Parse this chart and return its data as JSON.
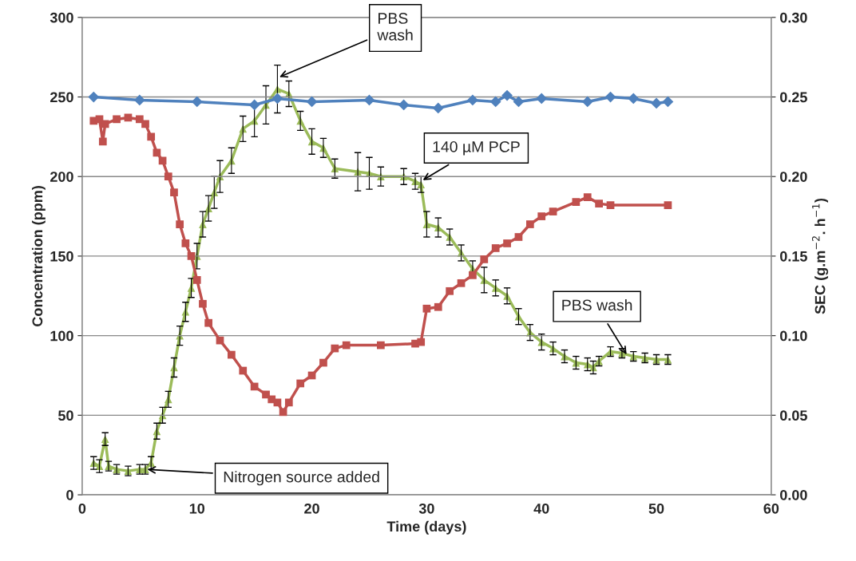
{
  "chart_data": {
    "type": "line",
    "xlabel": "Time (days)",
    "ylabel": "Concentration (ppm)",
    "y2label": "SEC (g.m$^{−2}$. h$^{−1}$)",
    "xlim": [
      0,
      60
    ],
    "xticks": [
      0,
      10,
      20,
      30,
      40,
      50,
      60
    ],
    "ylim": [
      0,
      300
    ],
    "yticks": [
      0,
      50,
      100,
      150,
      200,
      250,
      300
    ],
    "y2lim": [
      0,
      0.3
    ],
    "y2ticks": [
      {
        "value": 0,
        "label": "0.00"
      },
      {
        "value": 0.05,
        "label": "0.05"
      },
      {
        "value": 0.1,
        "label": "0.10"
      },
      {
        "value": 0.15,
        "label": "0.15"
      },
      {
        "value": 0.2,
        "label": "0.20"
      },
      {
        "value": 0.25,
        "label": "0.25"
      },
      {
        "value": 0.3,
        "label": "0.30"
      }
    ],
    "grid": "y",
    "legend": false,
    "line_style": "solid",
    "series": [
      {
        "color": "#4f81bd",
        "marker": "diamond",
        "x": [
          1,
          5,
          10,
          15,
          17,
          20,
          25,
          28,
          31,
          34,
          36,
          37,
          38,
          40,
          44,
          46,
          48,
          50,
          51
        ],
        "values": [
          250,
          248,
          247,
          245,
          249,
          247,
          248,
          245,
          243,
          248,
          247,
          251,
          247,
          249,
          247,
          250,
          249,
          246,
          247
        ]
      },
      {
        "color": "#c0504d",
        "marker": "square",
        "x": [
          1,
          1.5,
          1.8,
          2,
          3,
          4,
          5,
          5.5,
          6,
          6.5,
          7,
          7.5,
          8,
          8.5,
          9,
          9.5,
          10,
          10.5,
          11,
          12,
          13,
          14,
          15,
          16,
          16.5,
          17,
          17.5,
          18,
          19,
          20,
          21,
          22,
          23,
          26,
          29,
          29.5,
          30,
          31,
          32,
          33,
          34,
          35,
          36,
          37,
          38,
          39,
          40,
          41,
          43,
          44,
          45,
          46,
          51
        ],
        "values": [
          235,
          236,
          222,
          233,
          236,
          237,
          236,
          233,
          225,
          215,
          210,
          200,
          190,
          170,
          158,
          150,
          135,
          120,
          108,
          97,
          88,
          78,
          68,
          63,
          60,
          58,
          52,
          58,
          70,
          75,
          83,
          92,
          94,
          94,
          95,
          96,
          117,
          118,
          128,
          133,
          138,
          148,
          155,
          158,
          162,
          170,
          175,
          178,
          184,
          187,
          183,
          182,
          182
        ]
      },
      {
        "color": "#9bbb59",
        "marker": "triangle",
        "axis": "y2",
        "x": [
          1,
          1.5,
          2,
          2.3,
          3,
          4,
          5,
          5.5,
          6,
          6.5,
          7,
          7.5,
          8,
          8.5,
          9,
          9.5,
          10,
          10.5,
          11,
          11.5,
          12,
          13,
          14,
          15,
          16,
          17,
          18,
          19,
          20,
          21,
          22,
          24,
          25,
          26,
          28,
          29,
          29.5,
          30,
          31,
          32,
          33,
          34,
          35,
          36,
          37,
          38,
          39,
          40,
          41,
          42,
          43,
          44,
          44.5,
          45,
          46,
          47,
          48,
          49,
          50,
          51
        ],
        "values": [
          0.02,
          0.018,
          0.035,
          0.018,
          0.016,
          0.015,
          0.016,
          0.016,
          0.02,
          0.04,
          0.05,
          0.06,
          0.08,
          0.1,
          0.115,
          0.13,
          0.15,
          0.17,
          0.18,
          0.19,
          0.2,
          0.21,
          0.23,
          0.235,
          0.245,
          0.255,
          0.252,
          0.235,
          0.222,
          0.218,
          0.205,
          0.203,
          0.202,
          0.2,
          0.2,
          0.197,
          0.195,
          0.17,
          0.168,
          0.162,
          0.152,
          0.142,
          0.135,
          0.13,
          0.125,
          0.112,
          0.102,
          0.096,
          0.092,
          0.087,
          0.083,
          0.082,
          0.08,
          0.084,
          0.09,
          0.089,
          0.087,
          0.086,
          0.085,
          0.085
        ],
        "errors": [
          0.004,
          0.004,
          0.004,
          0.003,
          0.003,
          0.003,
          0.003,
          0.003,
          0.004,
          0.005,
          0.005,
          0.005,
          0.006,
          0.006,
          0.006,
          0.006,
          0.008,
          0.008,
          0.008,
          0.01,
          0.01,
          0.008,
          0.008,
          0.01,
          0.012,
          0.015,
          0.008,
          0.006,
          0.008,
          0.006,
          0.006,
          0.012,
          0.01,
          0.006,
          0.005,
          0.005,
          0.005,
          0.008,
          0.006,
          0.005,
          0.005,
          0.005,
          0.008,
          0.005,
          0.005,
          0.005,
          0.005,
          0.005,
          0.004,
          0.004,
          0.004,
          0.004,
          0.004,
          0.003,
          0.003,
          0.003,
          0.003,
          0.003,
          0.003,
          0.003
        ]
      }
    ],
    "annotations": [
      {
        "text": "PBS\nwash",
        "x": 17,
        "y": 262
      },
      {
        "text": "140 µM PCP",
        "x": 29.5,
        "y": 197
      },
      {
        "text": "PBS wash",
        "x": 47.5,
        "y": 87
      },
      {
        "text": "Nitrogen source added",
        "x": 5.5,
        "y": 16
      }
    ]
  }
}
